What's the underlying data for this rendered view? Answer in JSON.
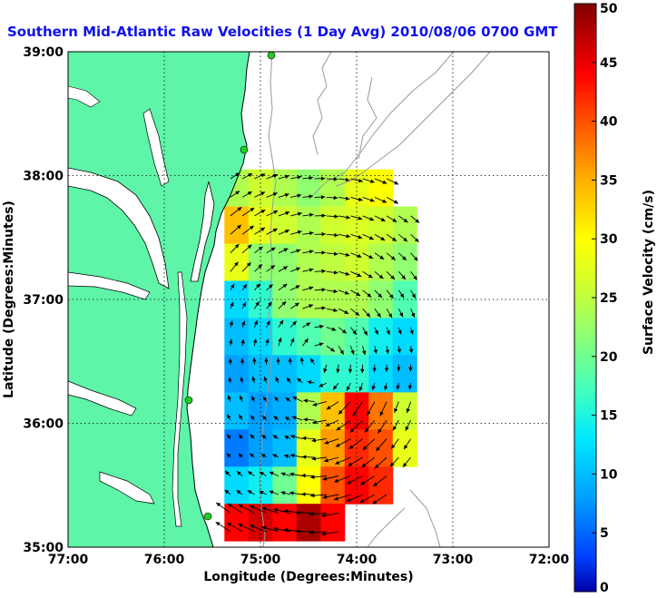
{
  "chart_data": {
    "type": "heatmap",
    "title": "Southern Mid-Atlantic Raw Velocities (1 Day Avg) 2010/08/06 0700 GMT",
    "xlabel": "Longitude (Degrees:Minutes)",
    "ylabel": "Latitude (Degrees:Minutes)",
    "x_ticks": [
      "77:00",
      "76:00",
      "75:00",
      "74:00",
      "73:00",
      "72:00"
    ],
    "y_ticks": [
      "39:00",
      "38:00",
      "37:00",
      "36:00",
      "35:00"
    ],
    "xlim": [
      -77,
      -72
    ],
    "ylim": [
      35,
      39
    ],
    "grid": true,
    "colorbar": {
      "label": "Surface Velocity (cm/s)",
      "range": [
        0,
        50
      ],
      "ticks": [
        "50",
        "45",
        "40",
        "35",
        "30",
        "25",
        "20",
        "15",
        "10",
        "5",
        "0"
      ]
    },
    "speed_field_cm_s": {
      "lon": [
        -75.25,
        -75.0,
        -74.75,
        -74.5,
        -74.25,
        -74.0,
        -73.75,
        -73.5
      ],
      "lat": [
        37.9,
        37.6,
        37.3,
        37.0,
        36.7,
        36.4,
        36.1,
        35.8,
        35.5,
        35.2
      ],
      "values": [
        [
          24,
          26,
          24,
          22,
          24,
          28,
          30,
          null
        ],
        [
          34,
          28,
          26,
          24,
          26,
          27,
          26,
          24
        ],
        [
          28,
          22,
          22,
          24,
          25,
          26,
          24,
          22
        ],
        [
          12,
          16,
          22,
          24,
          24,
          24,
          22,
          18
        ],
        [
          10,
          12,
          16,
          18,
          20,
          18,
          14,
          12
        ],
        [
          8,
          10,
          10,
          12,
          16,
          16,
          12,
          10
        ],
        [
          10,
          8,
          9,
          24,
          34,
          44,
          38,
          26
        ],
        [
          6,
          8,
          10,
          28,
          36,
          42,
          40,
          28
        ],
        [
          12,
          14,
          20,
          30,
          40,
          44,
          42,
          null
        ],
        [
          44,
          46,
          44,
          48,
          44,
          null,
          null,
          null
        ]
      ]
    },
    "colors": {
      "land": "#5ef5a8",
      "coastline": "#000000",
      "bathymetry": "#999999",
      "grid": "#000000",
      "title": "#1010ee",
      "station_marker": "#22cc22"
    }
  }
}
